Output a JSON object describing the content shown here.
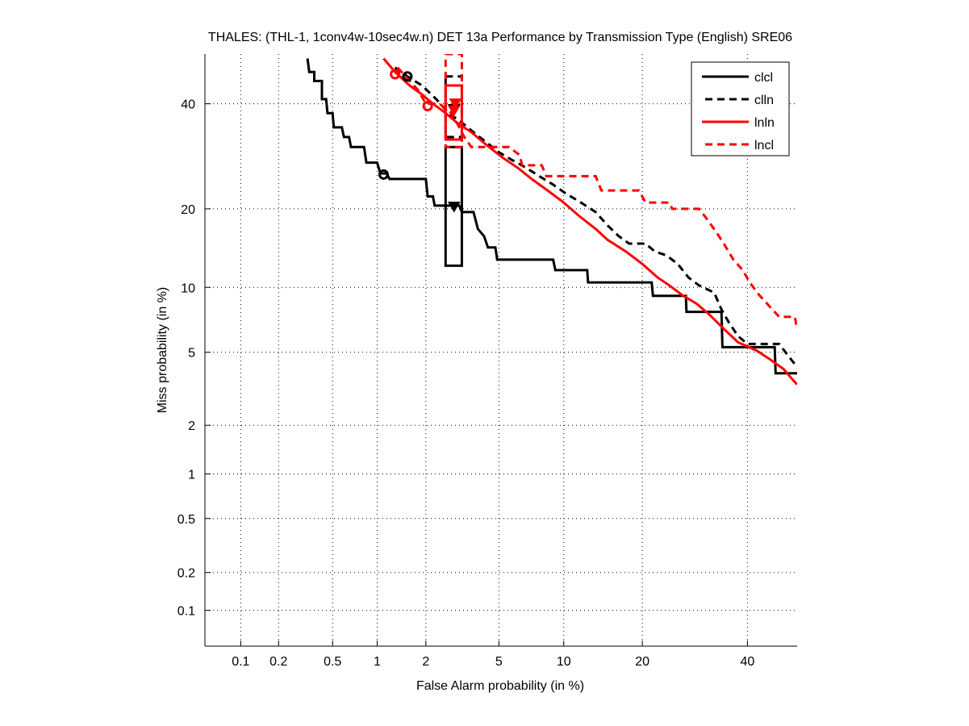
{
  "chart_data": {
    "type": "line",
    "title": "THALES: (THL-1, 1conv4w-10sec4w.n) DET 13a Performance by Transmission Type (English) SRE06",
    "xlabel": "False Alarm probability (in %)",
    "ylabel": "Miss probability (in %)",
    "scale": "probit (normal deviate)",
    "xlim": [
      0.05,
      51
    ],
    "ylim": [
      0.05,
      51
    ],
    "grid": true,
    "xticks": [
      0.1,
      0.2,
      0.5,
      1,
      2,
      5,
      10,
      20,
      40
    ],
    "xtick_labels": [
      "0.1",
      "0.2",
      "0.5",
      "1",
      "2",
      "5",
      "10",
      "20",
      "40"
    ],
    "yticks": [
      0.1,
      0.2,
      0.5,
      1,
      2,
      5,
      10,
      20,
      40
    ],
    "ytick_labels": [
      "0.1",
      "0.2",
      "0.5",
      "1",
      "2",
      "5",
      "10",
      "20",
      "40"
    ],
    "legend_position": "top-right",
    "series": [
      {
        "name": "clcl",
        "color": "#000000",
        "style": "solid",
        "points": [
          [
            0.33,
            50
          ],
          [
            0.34,
            47
          ],
          [
            0.37,
            47
          ],
          [
            0.37,
            45
          ],
          [
            0.42,
            45
          ],
          [
            0.42,
            41
          ],
          [
            0.45,
            41
          ],
          [
            0.46,
            38
          ],
          [
            0.5,
            38
          ],
          [
            0.51,
            35
          ],
          [
            0.58,
            35
          ],
          [
            0.6,
            33
          ],
          [
            0.65,
            33
          ],
          [
            0.67,
            31
          ],
          [
            0.82,
            31
          ],
          [
            0.85,
            28
          ],
          [
            1.0,
            28
          ],
          [
            1.05,
            26
          ],
          [
            1.15,
            26
          ],
          [
            1.2,
            25
          ],
          [
            2.0,
            25
          ],
          [
            2.05,
            22
          ],
          [
            2.2,
            22
          ],
          [
            2.25,
            20.5
          ],
          [
            3.1,
            20.5
          ],
          [
            3.2,
            19.5
          ],
          [
            3.7,
            19.5
          ],
          [
            3.9,
            17
          ],
          [
            4.2,
            16
          ],
          [
            4.4,
            14.5
          ],
          [
            4.8,
            14.5
          ],
          [
            4.9,
            13
          ],
          [
            9.0,
            13
          ],
          [
            9.2,
            11.8
          ],
          [
            12.5,
            11.8
          ],
          [
            12.6,
            10.5
          ],
          [
            21.5,
            10.5
          ],
          [
            21.7,
            9.2
          ],
          [
            27.5,
            9.2
          ],
          [
            27.6,
            7.8
          ],
          [
            34.5,
            7.8
          ],
          [
            34.7,
            5.3
          ],
          [
            46,
            5.3
          ],
          [
            46.2,
            3.9
          ],
          [
            51,
            3.9
          ]
        ],
        "min_dcf_point": [
          1.1,
          25.8
        ],
        "act_dcf_point": [
          2.9,
          20.3
        ],
        "confidence_box": {
          "fa": [
            2.6,
            3.2
          ],
          "miss": [
            12.3,
            31
          ]
        }
      },
      {
        "name": "clln",
        "color": "#000000",
        "style": "dashed",
        "points": [
          [
            1.3,
            48
          ],
          [
            1.55,
            46
          ],
          [
            1.9,
            44
          ],
          [
            2.3,
            41
          ],
          [
            2.7,
            38
          ],
          [
            3.2,
            36
          ],
          [
            3.7,
            34
          ],
          [
            4.3,
            32
          ],
          [
            5.0,
            30
          ],
          [
            5.8,
            28.5
          ],
          [
            6.8,
            27
          ],
          [
            7.8,
            25.5
          ],
          [
            9.0,
            24
          ],
          [
            10.2,
            22.5
          ],
          [
            11.8,
            21
          ],
          [
            13.5,
            19.5
          ],
          [
            15,
            17.5
          ],
          [
            16.5,
            16
          ],
          [
            18,
            15
          ],
          [
            20.5,
            15
          ],
          [
            22,
            14
          ],
          [
            24,
            13.5
          ],
          [
            26,
            12.5
          ],
          [
            28,
            11
          ],
          [
            30,
            10.2
          ],
          [
            33,
            9.5
          ],
          [
            34.5,
            8
          ],
          [
            36,
            7
          ],
          [
            38,
            6
          ],
          [
            40,
            5.5
          ],
          [
            47,
            5.5
          ],
          [
            49,
            4.8
          ],
          [
            51,
            4.2
          ]
        ],
        "min_dcf_point": [
          1.55,
          46
        ],
        "act_dcf_point": [
          2.9,
          38.8
        ],
        "confidence_box": {
          "fa": [
            2.6,
            3.2
          ],
          "miss": [
            33,
            46
          ]
        }
      },
      {
        "name": "lnln",
        "color": "#ff0000",
        "style": "solid",
        "points": [
          [
            1.1,
            50
          ],
          [
            1.3,
            47
          ],
          [
            1.6,
            44
          ],
          [
            1.9,
            42
          ],
          [
            2.2,
            40
          ],
          [
            2.6,
            38
          ],
          [
            3.0,
            36
          ],
          [
            3.6,
            34
          ],
          [
            4.3,
            31.5
          ],
          [
            5.2,
            29
          ],
          [
            6.2,
            27
          ],
          [
            7.2,
            25
          ],
          [
            8.5,
            23
          ],
          [
            10.0,
            21
          ],
          [
            11.5,
            19
          ],
          [
            13.5,
            17
          ],
          [
            15,
            15.5
          ],
          [
            17.5,
            14
          ],
          [
            20,
            12.5
          ],
          [
            22.5,
            11
          ],
          [
            24.5,
            10.2
          ],
          [
            27,
            9.2
          ],
          [
            29.5,
            8.5
          ],
          [
            32,
            7.6
          ],
          [
            35,
            6.5
          ],
          [
            38,
            5.6
          ],
          [
            42,
            5.1
          ],
          [
            45,
            4.6
          ],
          [
            48,
            4.1
          ],
          [
            50,
            3.6
          ],
          [
            51,
            3.4
          ]
        ],
        "min_dcf_point": [
          1.3,
          46.5
        ],
        "act_dcf_point": [
          2.9,
          38.5
        ],
        "confidence_box": {
          "fa": [
            2.6,
            3.2
          ],
          "miss": [
            32.5,
            44
          ]
        }
      },
      {
        "name": "lncl",
        "color": "#ff0000",
        "style": "dashed",
        "points": [
          [
            1.35,
            48
          ],
          [
            1.6,
            45
          ],
          [
            1.8,
            43
          ],
          [
            2.0,
            40
          ],
          [
            2.4,
            40
          ],
          [
            2.8,
            38
          ],
          [
            3.0,
            36
          ],
          [
            3.3,
            33
          ],
          [
            3.6,
            31
          ],
          [
            4.2,
            31
          ],
          [
            5.6,
            31
          ],
          [
            6.3,
            29.5
          ],
          [
            6.5,
            27.5
          ],
          [
            8.0,
            27.5
          ],
          [
            8.4,
            25.5
          ],
          [
            13.5,
            25.5
          ],
          [
            14.2,
            23
          ],
          [
            19.5,
            23
          ],
          [
            20.5,
            21
          ],
          [
            24.5,
            21
          ],
          [
            25,
            20
          ],
          [
            30,
            20
          ],
          [
            31.5,
            18.5
          ],
          [
            33.5,
            16.5
          ],
          [
            35,
            15
          ],
          [
            37,
            13
          ],
          [
            39,
            11.8
          ],
          [
            40.5,
            10.5
          ],
          [
            42.5,
            9.3
          ],
          [
            45,
            8.2
          ],
          [
            47,
            7.4
          ],
          [
            50.5,
            7.4
          ],
          [
            50.8,
            6.8
          ]
        ],
        "min_dcf_point": [
          2.05,
          39.5
        ],
        "act_dcf_point": [
          2.95,
          40
        ],
        "confidence_box": {
          "fa": [
            2.6,
            3.2
          ],
          "miss": [
            31,
            51
          ]
        }
      }
    ]
  }
}
